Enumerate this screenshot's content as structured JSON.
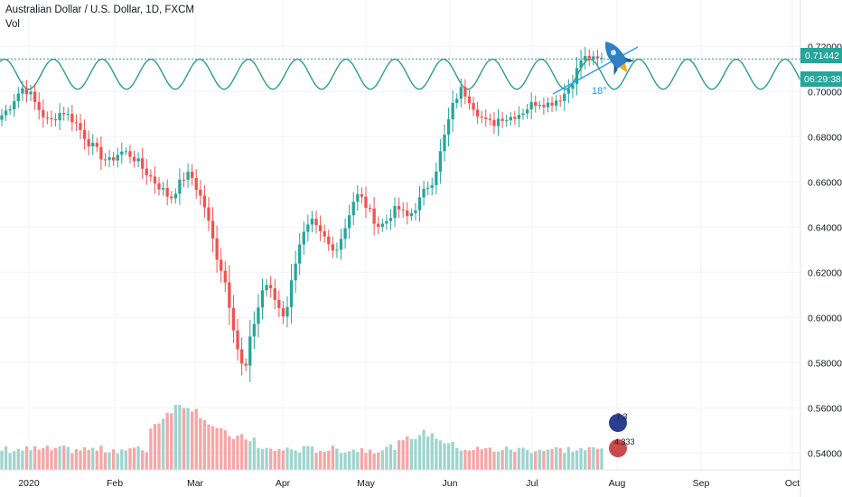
{
  "header": {
    "symbol_title": "Australian Dollar / U.S. Dollar, 1D, FXCM",
    "indicator": "Vol"
  },
  "colors": {
    "up": "#26a69a",
    "down": "#ef5350",
    "up_volume": "#9fd4ce",
    "down_volume": "#f4a7a6",
    "wave": "#2a9d8f",
    "price_tag": "#26a69a",
    "trendline": "#2196f3",
    "grid": "#f0f3fa",
    "axis_text": "#131722"
  },
  "chart_data": {
    "type": "candlestick",
    "title": "Australian Dollar / U.S. Dollar, 1D, FXCM",
    "x_tick_labels": [
      "2020",
      "Feb",
      "Mar",
      "Apr",
      "May",
      "Jun",
      "Jul",
      "Aug",
      "Sep",
      "Oct"
    ],
    "y_tick_labels": [
      "0.72000",
      "0.70000",
      "0.68000",
      "0.66000",
      "0.64000",
      "0.62000",
      "0.60000",
      "0.58000",
      "0.56000",
      "0.54000"
    ],
    "y_ticks": [
      0.72,
      0.7,
      0.68,
      0.66,
      0.64,
      0.62,
      0.6,
      0.58,
      0.56,
      0.54
    ],
    "ylim": [
      0.5325,
      0.7405
    ],
    "grid": true,
    "last_price_label": "0.71442",
    "last_price": 0.71442,
    "countdown_label": "06:29:38",
    "countdown_level": 0.7035,
    "trend_angle_label": "18°",
    "volume_icon_labels": [
      "7.3",
      "4.333"
    ],
    "series": [
      {
        "name": "Vol",
        "type": "volume"
      }
    ],
    "close_path": [
      0.6895,
      0.6925,
      0.6975,
      0.7015,
      0.7,
      0.6945,
      0.69,
      0.686,
      0.689,
      0.6915,
      0.689,
      0.686,
      0.6815,
      0.677,
      0.674,
      0.6705,
      0.669,
      0.672,
      0.6735,
      0.672,
      0.6695,
      0.6655,
      0.6625,
      0.659,
      0.656,
      0.6525,
      0.6575,
      0.662,
      0.6635,
      0.6565,
      0.65,
      0.638,
      0.626,
      0.618,
      0.602,
      0.586,
      0.574,
      0.593,
      0.604,
      0.616,
      0.611,
      0.605,
      0.6,
      0.616,
      0.632,
      0.638,
      0.642,
      0.6375,
      0.6345,
      0.629,
      0.633,
      0.6405,
      0.651,
      0.6545,
      0.6495,
      0.6445,
      0.64,
      0.6425,
      0.647,
      0.648,
      0.644,
      0.647,
      0.652,
      0.6575,
      0.661,
      0.672,
      0.684,
      0.6945,
      0.701,
      0.6985,
      0.6935,
      0.689,
      0.686,
      0.686,
      0.689,
      0.688,
      0.6895,
      0.6905,
      0.693,
      0.695,
      0.6955,
      0.6945,
      0.696,
      0.6975,
      0.701,
      0.707,
      0.7145,
      0.715,
      0.7135,
      0.7144
    ]
  }
}
